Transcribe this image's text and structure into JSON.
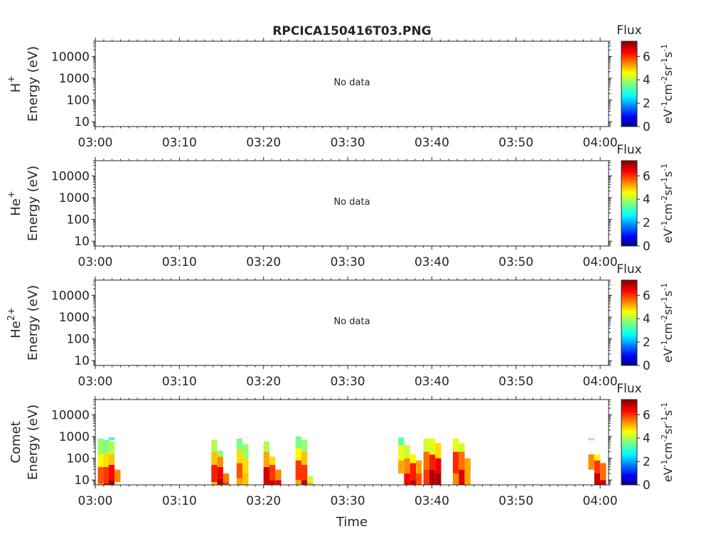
{
  "title": "RPCICA150416T03.PNG",
  "xlabel": "Time",
  "time_ticks": [
    "03:00",
    "03:10",
    "03:20",
    "03:30",
    "03:40",
    "03:50",
    "04:00"
  ],
  "energy_ticks": [
    "10",
    "100",
    "1000",
    "10000"
  ],
  "colorbar": {
    "title": "Flux",
    "ticks": [
      "0",
      "2",
      "4",
      "6"
    ],
    "unit_text": [
      "eV",
      "-1",
      "cm",
      "-2",
      "sr",
      "-1",
      "s",
      "-1"
    ]
  },
  "panels": [
    {
      "species_base": "H",
      "species_sup": "+",
      "energy_label": "Energy (eV)",
      "message": "No data"
    },
    {
      "species_base": "He",
      "species_sup": "+",
      "energy_label": "Energy (eV)",
      "message": "No data"
    },
    {
      "species_base": "He",
      "species_sup": "2+",
      "energy_label": "Energy (eV)",
      "message": "No data"
    },
    {
      "species_base": "Comet",
      "species_sup": "",
      "energy_label": "Energy (eV)",
      "message": ""
    }
  ],
  "chart_data": {
    "type": "heatmap",
    "title": "RPCICA150416T03.PNG",
    "xlabel": "Time",
    "x_range": [
      "03:00",
      "04:01"
    ],
    "y_scale": "log",
    "y_range_eV": [
      6,
      50000
    ],
    "colorbar_range": [
      0,
      7.3
    ],
    "colormap": "jet",
    "panels": [
      {
        "name": "H+",
        "data": []
      },
      {
        "name": "He+",
        "data": []
      },
      {
        "name": "He2+",
        "data": []
      },
      {
        "name": "Comet",
        "columns": [
          {
            "t_min": 0.3,
            "cells": [
              [
                1,
                7,
                5.2
              ],
              [
                7,
                40,
                5.8
              ],
              [
                40,
                150,
                4.6
              ],
              [
                150,
                800,
                3.8
              ]
            ]
          },
          {
            "t_min": 1.0,
            "cells": [
              [
                1,
                7,
                6.6
              ],
              [
                7,
                40,
                6.0
              ],
              [
                40,
                200,
                4.8
              ],
              [
                200,
                700,
                3.6
              ]
            ]
          },
          {
            "t_min": 1.6,
            "cells": [
              [
                1,
                10,
                7.0
              ],
              [
                10,
                50,
                6.4
              ],
              [
                50,
                150,
                5.0
              ],
              [
                150,
                600,
                4.0
              ],
              [
                700,
                900,
                2.8
              ]
            ]
          },
          {
            "t_min": 2.3,
            "cells": [
              [
                8,
                30,
                5.4
              ]
            ]
          },
          {
            "t_min": 13.8,
            "cells": [
              [
                1,
                8,
                5.0
              ],
              [
                8,
                50,
                6.2
              ],
              [
                50,
                200,
                5.0
              ],
              [
                200,
                700,
                4.0
              ]
            ]
          },
          {
            "t_min": 14.5,
            "cells": [
              [
                1,
                12,
                7.0
              ],
              [
                12,
                40,
                6.5
              ],
              [
                40,
                120,
                5.4
              ],
              [
                120,
                220,
                3.8
              ]
            ]
          },
          {
            "t_min": 15.2,
            "cells": [
              [
                1,
                8,
                6.0
              ],
              [
                8,
                20,
                5.5
              ]
            ]
          },
          {
            "t_min": 16.8,
            "cells": [
              [
                1,
                12,
                5.2
              ],
              [
                12,
                60,
                5.8
              ],
              [
                60,
                250,
                4.8
              ],
              [
                250,
                800,
                3.6
              ]
            ]
          },
          {
            "t_min": 17.5,
            "cells": [
              [
                1,
                20,
                5.0
              ],
              [
                20,
                100,
                4.8
              ],
              [
                100,
                450,
                3.8
              ]
            ]
          },
          {
            "t_min": 20.0,
            "cells": [
              [
                1,
                6,
                5.0
              ],
              [
                6,
                40,
                6.7
              ],
              [
                40,
                200,
                5.2
              ],
              [
                200,
                600,
                4.0
              ]
            ]
          },
          {
            "t_min": 20.7,
            "cells": [
              [
                1,
                10,
                6.8
              ],
              [
                10,
                50,
                6.0
              ],
              [
                50,
                120,
                4.8
              ]
            ]
          },
          {
            "t_min": 21.4,
            "cells": [
              [
                1,
                10,
                6.6
              ],
              [
                10,
                30,
                5.4
              ]
            ]
          },
          {
            "t_min": 23.8,
            "cells": [
              [
                1,
                10,
                5.2
              ],
              [
                10,
                80,
                6.0
              ],
              [
                80,
                300,
                4.6
              ],
              [
                300,
                1000,
                3.6
              ]
            ]
          },
          {
            "t_min": 24.5,
            "cells": [
              [
                1,
                10,
                6.8
              ],
              [
                10,
                50,
                6.0
              ],
              [
                50,
                200,
                5.0
              ],
              [
                200,
                700,
                3.8
              ]
            ]
          },
          {
            "t_min": 25.2,
            "cells": [
              [
                1,
                8,
                5.0
              ],
              [
                8,
                15,
                4.2
              ]
            ]
          },
          {
            "t_min": 36.0,
            "cells": [
              [
                20,
                80,
                5.2
              ],
              [
                80,
                400,
                4.4
              ],
              [
                400,
                900,
                3.4
              ]
            ]
          },
          {
            "t_min": 36.7,
            "cells": [
              [
                1,
                20,
                6.4
              ],
              [
                20,
                100,
                5.4
              ],
              [
                100,
                400,
                4.2
              ]
            ]
          },
          {
            "t_min": 37.4,
            "cells": [
              [
                1,
                10,
                6.8
              ],
              [
                10,
                60,
                6.2
              ],
              [
                60,
                150,
                4.6
              ]
            ]
          },
          {
            "t_min": 38.1,
            "cells": [
              [
                1,
                20,
                5.8
              ],
              [
                20,
                80,
                5.2
              ]
            ]
          },
          {
            "t_min": 39.0,
            "cells": [
              [
                6,
                30,
                6.0
              ],
              [
                30,
                200,
                5.6
              ],
              [
                200,
                800,
                4.2
              ]
            ]
          },
          {
            "t_min": 39.7,
            "cells": [
              [
                1,
                30,
                6.9
              ],
              [
                30,
                150,
                6.2
              ],
              [
                150,
                800,
                4.4
              ]
            ]
          },
          {
            "t_min": 40.4,
            "cells": [
              [
                1,
                20,
                7.0
              ],
              [
                20,
                100,
                6.5
              ],
              [
                100,
                500,
                4.8
              ]
            ]
          },
          {
            "t_min": 42.5,
            "cells": [
              [
                1,
                20,
                5.4
              ],
              [
                20,
                200,
                6.1
              ],
              [
                200,
                800,
                4.4
              ]
            ]
          },
          {
            "t_min": 43.2,
            "cells": [
              [
                1,
                30,
                6.6
              ],
              [
                30,
                200,
                5.6
              ],
              [
                200,
                500,
                4.2
              ]
            ]
          },
          {
            "t_min": 43.9,
            "cells": [
              [
                1,
                100,
                5.2
              ]
            ]
          },
          {
            "t_min": 58.6,
            "cells": [
              [
                30,
                150,
                5.4
              ],
              [
                700,
                850,
                3.6
              ]
            ]
          },
          {
            "t_min": 59.3,
            "cells": [
              [
                1,
                20,
                6.8
              ],
              [
                20,
                80,
                6.0
              ],
              [
                80,
                150,
                4.6
              ]
            ]
          },
          {
            "t_min": 60.0,
            "cells": [
              [
                1,
                10,
                6.8
              ],
              [
                10,
                60,
                5.6
              ]
            ]
          }
        ]
      }
    ]
  }
}
